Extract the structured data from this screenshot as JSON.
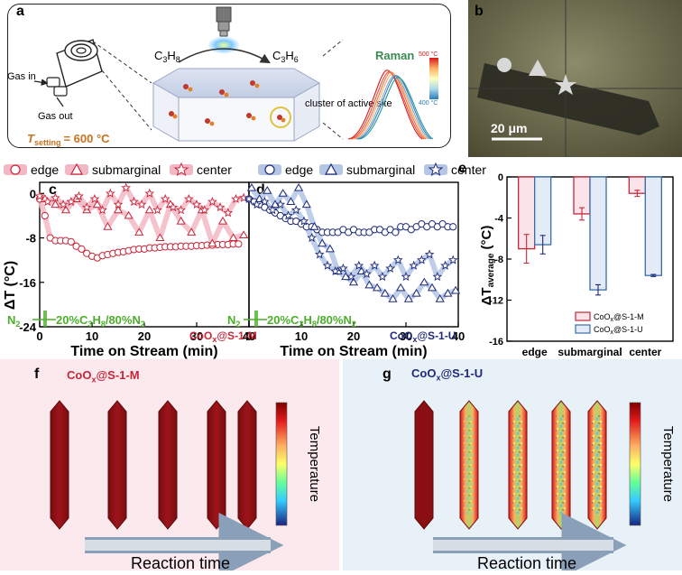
{
  "panel_labels": {
    "a": "a",
    "b": "b",
    "c": "c",
    "d": "d",
    "e": "e",
    "f": "f",
    "g": "g"
  },
  "panel_a": {
    "gas_in": "Gas in",
    "gas_out": "Gas out",
    "t_setting_label": "T",
    "t_setting_sub": "setting",
    "t_setting_value": "= 600 °C",
    "c3h8": "C",
    "c3h8_sub1": "3",
    "c3h8_mid": "H",
    "c3h8_sub2": "8",
    "c3h6": "C",
    "c3h6_sub1": "3",
    "c3h6_mid": "H",
    "c3h6_sub2": "6",
    "cluster_label": "cluster of active site",
    "raman_title": "Raman",
    "raman_top": "500 °C",
    "raman_bottom": "400 °C",
    "colors": {
      "raman_title": "#3a8a52",
      "t_setting": "#c8731e",
      "cluster_circle": "#e0c23a"
    }
  },
  "panel_b": {
    "scale_bar": "20 μm"
  },
  "legend_m": {
    "edge": "edge",
    "submarginal": "submarginal",
    "center": "center"
  },
  "legend_u": {
    "edge": "edge",
    "submarginal": "submarginal",
    "center": "center"
  },
  "panel_cd": {
    "ylabel": "ΔT (°C)",
    "xlabel": "Time on Stream (min)",
    "yticks": [
      "0",
      "-8",
      "-16",
      "-24"
    ],
    "xticks_c": [
      "0",
      "10",
      "20",
      "30",
      "40"
    ],
    "xticks_d": [
      "0",
      "10",
      "20",
      "30",
      "40"
    ],
    "n2": "N",
    "n2_sub": "2",
    "feed": "20%C",
    "feed_sub1": "3",
    "feed_mid": "H",
    "feed_sub2": "8",
    "feed_end": "/80%N",
    "feed_sub3": "2",
    "sample_c": "CoO",
    "sample_c_sub": "x",
    "sample_c_end": "@S-1-M",
    "sample_d": "CoO",
    "sample_d_sub": "x",
    "sample_d_end": "@S-1-U",
    "colors": {
      "m": "#c8263a",
      "u": "#1e2a78",
      "green": "#4caf2a",
      "m_fill": "#f2b8c6",
      "u_fill": "#b4c6e4"
    }
  },
  "panel_e": {
    "ylabel_main": "ΔT",
    "ylabel_sub": "average",
    "ylabel_unit": " (°C)",
    "yticks": [
      "0",
      "-4",
      "-8",
      "-12",
      "-16"
    ],
    "legend_m": "CoO",
    "legend_m_sub": "x",
    "legend_m_end": "@S-1-M",
    "legend_u": "CoO",
    "legend_u_sub": "x",
    "legend_u_end": "@S-1-U"
  },
  "panel_f": {
    "sample": "CoO",
    "sample_sub": "x",
    "sample_end": "@S-1-M",
    "colorbar_label": "Temperature",
    "arrow_label": "Reaction time"
  },
  "panel_g": {
    "sample": "CoO",
    "sample_sub": "x",
    "sample_end": "@S-1-U",
    "colorbar_label": "Temperature",
    "arrow_label": "Reaction time"
  },
  "chart_data": [
    {
      "type": "scatter",
      "panel": "c",
      "xlabel": "Time on Stream (min)",
      "ylabel": "ΔT (°C)",
      "xlim": [
        0,
        40
      ],
      "ylim": [
        -24,
        2
      ],
      "series": [
        {
          "name": "edge",
          "x": [
            0,
            1,
            2,
            3,
            4,
            5,
            6,
            7,
            8,
            9,
            10,
            11,
            12,
            13,
            14,
            15,
            16,
            17,
            18,
            19,
            20,
            21,
            22,
            23,
            24,
            25,
            26,
            27,
            28,
            29,
            30,
            31,
            32,
            33,
            34,
            35,
            36,
            37,
            38
          ],
          "values": [
            -1,
            -4,
            -8,
            -8.5,
            -8.5,
            -8.5,
            -8.7,
            -9.5,
            -10,
            -10.8,
            -11.3,
            -11.6,
            -11.2,
            -11,
            -10.8,
            -10.6,
            -10.5,
            -10.3,
            -10.1,
            -10,
            -10,
            -9.8,
            -9.8,
            -9.7,
            -9.6,
            -9.6,
            -9.6,
            -9.5,
            -9.5,
            -9.5,
            -9.4,
            -9.4,
            -9.3,
            -9.3,
            -9.2,
            -9.2,
            -9.2,
            -9.1,
            -9.1
          ]
        },
        {
          "name": "submarginal",
          "x": [
            1,
            3,
            5,
            7,
            9,
            11,
            13,
            15,
            17,
            19,
            21,
            23,
            25,
            27,
            29,
            31,
            33,
            35,
            37,
            39
          ],
          "values": [
            -1,
            -2,
            -3,
            -1,
            -3,
            -2,
            -6,
            -3,
            -4,
            -7,
            -3,
            -8,
            -2,
            -5,
            -7,
            -3,
            -9,
            -5,
            -8,
            -7.5
          ]
        },
        {
          "name": "center",
          "x": [
            0,
            1.5,
            3,
            4.5,
            6,
            7.5,
            9,
            10.5,
            12,
            13.5,
            15,
            16.5,
            18,
            19.5,
            21,
            22.5,
            24,
            25.5,
            27,
            28.5,
            30,
            31.5,
            33,
            34.5,
            36,
            37.5,
            39
          ],
          "values": [
            -0.5,
            -1.5,
            -0.8,
            -2,
            -1.5,
            -0.5,
            -2.5,
            -1,
            -3,
            0,
            -2,
            1,
            -1.5,
            -2,
            0,
            -3,
            -1,
            -2.5,
            -3,
            -1,
            -2,
            -3,
            -1.5,
            -2.5,
            -3.5,
            -1,
            -0.8
          ]
        }
      ]
    },
    {
      "type": "scatter",
      "panel": "d",
      "xlabel": "Time on Stream (min)",
      "ylabel": "ΔT (°C)",
      "xlim": [
        0,
        40
      ],
      "ylim": [
        -24,
        2
      ],
      "series": [
        {
          "name": "edge",
          "x": [
            0,
            1,
            2,
            3,
            4,
            5,
            6,
            7,
            8,
            9,
            10,
            11,
            12,
            13,
            14,
            15,
            16,
            17,
            18,
            19,
            20,
            21,
            22,
            23,
            24,
            25,
            26,
            27,
            28,
            29,
            30,
            31,
            32,
            33,
            34,
            35,
            36,
            37,
            38,
            39
          ],
          "values": [
            -1,
            -1.5,
            -2,
            -2.5,
            -3,
            -3.5,
            -4,
            -4.5,
            -5,
            -5,
            -5.5,
            -6,
            -6,
            -6.5,
            -7,
            -7,
            -7,
            -7,
            -6.5,
            -7,
            -6.5,
            -7,
            -7,
            -7,
            -6.5,
            -6.5,
            -7,
            -6.5,
            -7,
            -6,
            -6,
            -6.5,
            -6,
            -5.5,
            -6,
            -5.5,
            -6,
            -5.5,
            -6,
            -6
          ]
        },
        {
          "name": "submarginal",
          "x": [
            0.5,
            2,
            3.5,
            5,
            6.5,
            8,
            9.5,
            11,
            12.5,
            14,
            15.5,
            17,
            18.5,
            20,
            21.5,
            23,
            24.5,
            26,
            27.5,
            29,
            30.5,
            32,
            33.5,
            35,
            36.5,
            38,
            39.5
          ],
          "values": [
            1,
            -1,
            0.5,
            -2,
            0,
            -1.5,
            1,
            -2,
            -6,
            -9,
            -10,
            -14,
            -15,
            -16,
            -14,
            -16.5,
            -17,
            -18,
            -19,
            -17,
            -19,
            -18,
            -16,
            -17,
            -19,
            -18,
            -17.5
          ]
        },
        {
          "name": "center",
          "x": [
            0,
            1.5,
            3,
            4.5,
            6,
            7.5,
            9,
            10.5,
            12,
            13.5,
            15,
            16.5,
            18,
            19.5,
            21,
            22.5,
            24,
            25.5,
            27,
            28.5,
            30,
            31.5,
            33,
            34.5,
            36,
            37.5,
            39
          ],
          "values": [
            -1,
            -2,
            -1.5,
            -3,
            -2,
            -4,
            -3,
            -5,
            -8,
            -11,
            -13,
            -14,
            -13.5,
            -15,
            -13,
            -14.5,
            -13,
            -15,
            -13.5,
            -12,
            -15,
            -13,
            -12,
            -11,
            -15,
            -13,
            -12
          ]
        }
      ]
    },
    {
      "type": "bar",
      "panel": "e",
      "categories": [
        "edge",
        "submarginal",
        "center"
      ],
      "ylim": [
        -16,
        0
      ],
      "ylabel": "ΔT average (°C)",
      "series": [
        {
          "name": "CoOx@S-1-M",
          "values": [
            -7,
            -3.6,
            -1.6
          ],
          "errors": [
            1.4,
            0.6,
            0.3
          ]
        },
        {
          "name": "CoOx@S-1-U",
          "values": [
            -6.6,
            -11,
            -9.6
          ],
          "errors": [
            0.9,
            0.5,
            0.1
          ]
        }
      ]
    }
  ]
}
